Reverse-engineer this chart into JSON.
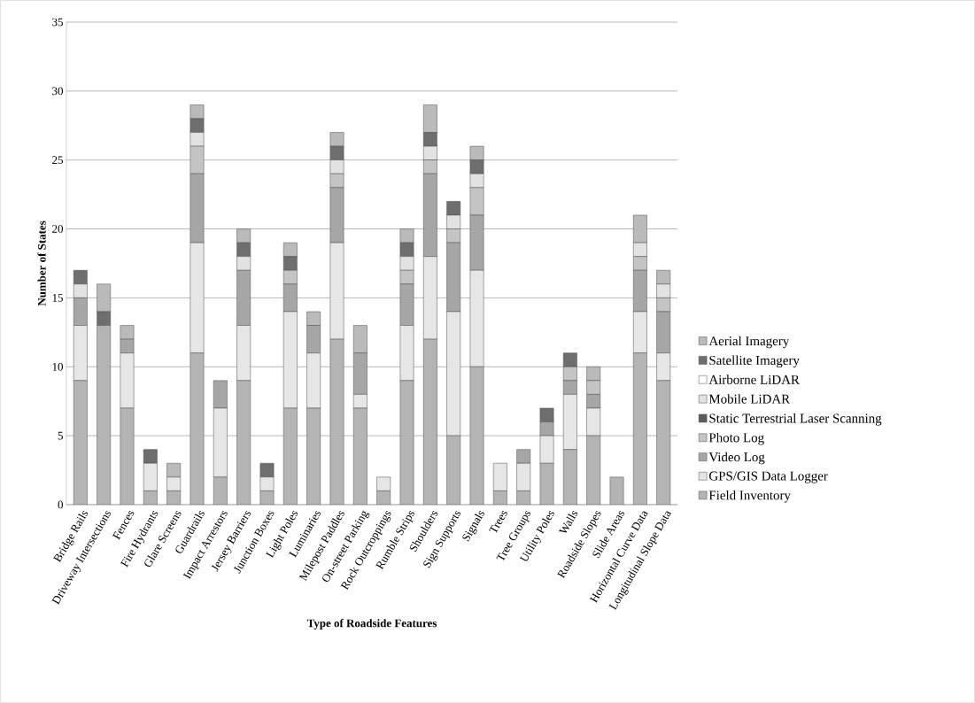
{
  "chart_data": {
    "type": "bar",
    "stacked": true,
    "xlabel": "Type of Roadside Features",
    "ylabel": "Number of States",
    "categories": [
      "Bridge Rails",
      "Driveway Intersections",
      "Fences",
      "Fire Hydrants",
      "Glare Screens",
      "Guardrails",
      "Impact Arrestors",
      "Jersey Barriers",
      "Junction Boxes",
      "Light Poles",
      "Luminaries",
      "Milepost Paddles",
      "On-street Parking",
      "Rock Outcroppings",
      "Rumble Strips",
      "Shoulders",
      "Sign Supports",
      "Signals",
      "Trees",
      "Tree Groups",
      "Utility Poles",
      "Walls",
      "Roadside Slopes",
      "Slide Areas",
      "Horizontal Curve Data",
      "Longitudinal Slope Data"
    ],
    "series": [
      {
        "name": "Field Inventory",
        "color": "#b4b4b4",
        "values": [
          9,
          13,
          7,
          1,
          1,
          11,
          2,
          9,
          1,
          7,
          7,
          12,
          7,
          1,
          9,
          12,
          5,
          10,
          1,
          1,
          3,
          4,
          5,
          2,
          11,
          9
        ]
      },
      {
        "name": "GPS/GIS Data Logger",
        "color": "#e6e6e6",
        "values": [
          4,
          0,
          4,
          2,
          1,
          8,
          5,
          4,
          1,
          7,
          4,
          7,
          1,
          1,
          4,
          6,
          9,
          7,
          2,
          2,
          2,
          4,
          2,
          0,
          3,
          2
        ]
      },
      {
        "name": "Video Log",
        "color": "#a6a6a6",
        "values": [
          2,
          0,
          1,
          0,
          0,
          5,
          2,
          4,
          0,
          2,
          2,
          4,
          3,
          0,
          3,
          6,
          5,
          4,
          0,
          1,
          1,
          1,
          1,
          0,
          3,
          3
        ]
      },
      {
        "name": "Photo Log",
        "color": "#c4c4c4",
        "values": [
          0,
          0,
          0,
          0,
          0,
          2,
          0,
          0,
          0,
          1,
          0,
          1,
          0,
          0,
          1,
          1,
          1,
          2,
          0,
          0,
          0,
          1,
          1,
          0,
          1,
          1
        ]
      },
      {
        "name": "Static Terrestrial Laser Scanning",
        "color": "#5a5a5a",
        "values": [
          0,
          0,
          0,
          0,
          0,
          0,
          0,
          0,
          0,
          0,
          0,
          0,
          0,
          0,
          0,
          0,
          0,
          0,
          0,
          0,
          0,
          0,
          0,
          0,
          0,
          0
        ]
      },
      {
        "name": "Mobile LiDAR",
        "color": "#e2e2e2",
        "values": [
          1,
          0,
          0,
          0,
          0,
          1,
          0,
          1,
          0,
          0,
          0,
          1,
          0,
          0,
          1,
          1,
          1,
          1,
          0,
          0,
          0,
          0,
          0,
          0,
          1,
          1
        ]
      },
      {
        "name": "Airborne LiDAR",
        "color": "#ffffff",
        "values": [
          0,
          0,
          0,
          0,
          0,
          0,
          0,
          0,
          0,
          0,
          0,
          0,
          0,
          0,
          0,
          0,
          0,
          0,
          0,
          0,
          0,
          0,
          0,
          0,
          0,
          0
        ]
      },
      {
        "name": "Satellite Imagery",
        "color": "#6e6e6e",
        "values": [
          1,
          1,
          0,
          1,
          0,
          1,
          0,
          1,
          1,
          1,
          0,
          1,
          0,
          0,
          1,
          1,
          1,
          1,
          0,
          0,
          1,
          1,
          0,
          0,
          0,
          0
        ]
      },
      {
        "name": "Aerial Imagery",
        "color": "#bababa",
        "values": [
          0,
          2,
          1,
          0,
          1,
          1,
          0,
          1,
          0,
          1,
          1,
          1,
          2,
          0,
          1,
          2,
          0,
          1,
          0,
          0,
          0,
          0,
          1,
          0,
          2,
          1
        ]
      }
    ],
    "ylim": [
      0,
      35
    ],
    "yticks": [
      0,
      5,
      10,
      15,
      20,
      25,
      30,
      35
    ],
    "grid": "y",
    "legend": "right"
  }
}
